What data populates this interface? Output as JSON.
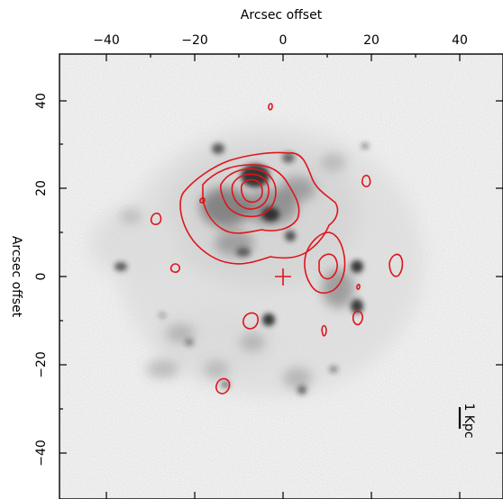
{
  "figure": {
    "top_axis_label": "Arcsec offset",
    "left_axis_label": "Arcsec offset",
    "x_ticks": [
      "−40",
      "−20",
      "0",
      "20",
      "40"
    ],
    "y_ticks": [
      "40",
      "20",
      "0",
      "−20",
      "−40"
    ],
    "scale_bar_label": "1 Kpc",
    "image_colormap": "grayscale (white background, dark emission)",
    "contour_color": "#e0141b",
    "center_marker": "red cross at (0, 0)"
  }
}
